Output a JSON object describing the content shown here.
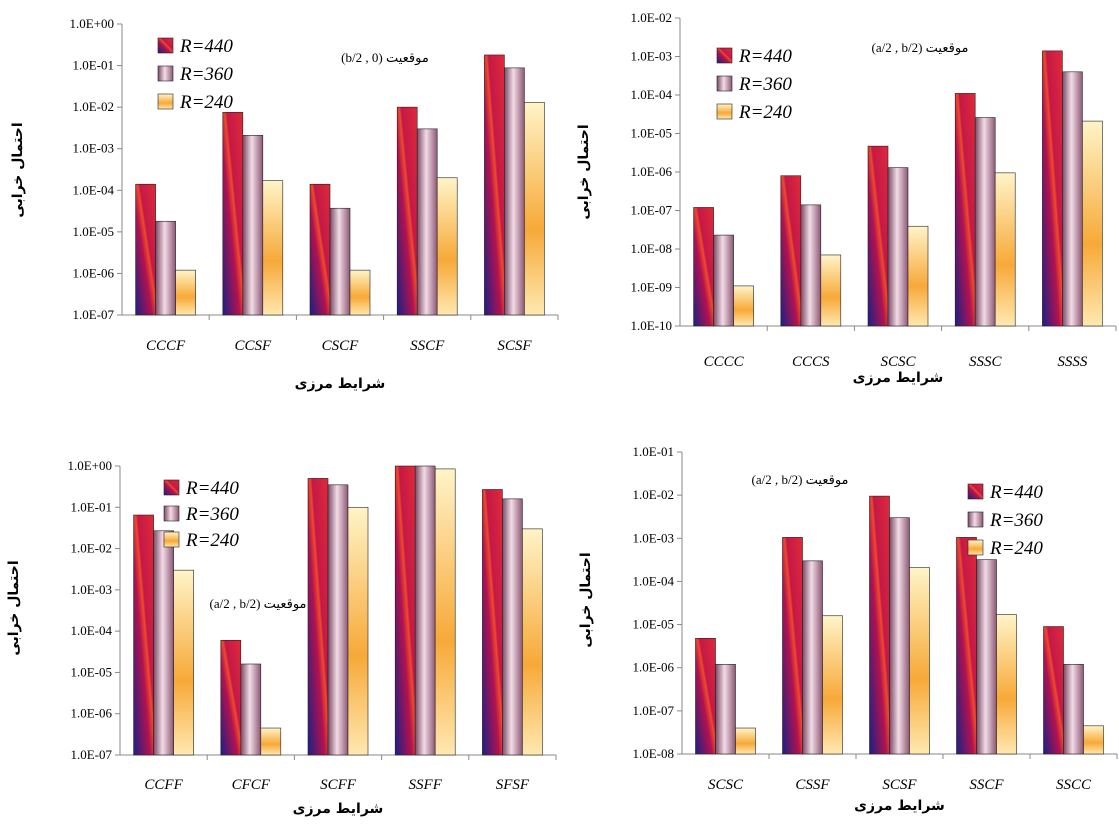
{
  "colors": {
    "r440": "#d81f3a",
    "r360": "#c58aa2",
    "r240": "#f4a94a",
    "axis": "#888888"
  },
  "chart_data": [
    {
      "type": "bar",
      "scale": "log",
      "ylabel": "احتمال خرابی",
      "xlabel": "شرایط مرزی",
      "ylim": [
        1e-07,
        1
      ],
      "yticks": [
        "1.0E-07",
        "1.0E-06",
        "1.0E-05",
        "1.0E-04",
        "1.0E-03",
        "1.0E-02",
        "1.0E-01",
        "1.0E+00"
      ],
      "annotation": "موقعیت (b/2 , 0)",
      "legend_position": "top-left",
      "categories": [
        "CCCF",
        "CCSF",
        "CSCF",
        "SSCF",
        "SCSF"
      ],
      "series": [
        {
          "name": "R=440",
          "values": [
            0.00014,
            0.0075,
            0.00014,
            0.01,
            0.18
          ]
        },
        {
          "name": "R=360",
          "values": [
            1.8e-05,
            0.0021,
            3.7e-05,
            0.003,
            0.088
          ]
        },
        {
          "name": "R=240",
          "values": [
            1.2e-06,
            0.00017,
            1.2e-06,
            0.0002,
            0.013
          ]
        }
      ]
    },
    {
      "type": "bar",
      "scale": "log",
      "ylabel": "احتمال خرابی",
      "xlabel": "شرایط مرزی",
      "ylim": [
        1e-10,
        0.01
      ],
      "yticks": [
        "1.0E-10",
        "1.0E-09",
        "1.0E-08",
        "1.0E-07",
        "1.0E-06",
        "1.0E-05",
        "1.0E-04",
        "1.0E-03",
        "1.0E-02"
      ],
      "annotation": "موقعیت (a/2 , b/2)",
      "legend_position": "top-left",
      "categories": [
        "CCCC",
        "CCCS",
        "SCSC",
        "SSSC",
        "SSSS"
      ],
      "series": [
        {
          "name": "R=440",
          "values": [
            1.2e-07,
            8e-07,
            4.7e-06,
            0.00011,
            0.0014
          ]
        },
        {
          "name": "R=360",
          "values": [
            2.3e-08,
            1.4e-07,
            1.3e-06,
            2.6e-05,
            0.0004
          ]
        },
        {
          "name": "R=240",
          "values": [
            1.1e-09,
            7e-09,
            3.9e-08,
            9.5e-07,
            2.1e-05
          ]
        }
      ]
    },
    {
      "type": "bar",
      "scale": "log",
      "ylabel": "احتمال خرابی",
      "xlabel": "شرایط مرزی",
      "ylim": [
        1e-07,
        1
      ],
      "yticks": [
        "1.0E-07",
        "1.0E-06",
        "1.0E-05",
        "1.0E-04",
        "1.0E-03",
        "1.0E-02",
        "1.0E-01",
        "1.0E+00"
      ],
      "annotation": "موقعیت (a/2 , b/2)",
      "legend_position": "top-left",
      "categories": [
        "CCFF",
        "CFCF",
        "SCFF",
        "SSFF",
        "SFSF"
      ],
      "series": [
        {
          "name": "R=440",
          "values": [
            0.065,
            6e-05,
            0.5,
            1.0,
            0.27
          ]
        },
        {
          "name": "R=360",
          "values": [
            0.027,
            1.6e-05,
            0.35,
            1.0,
            0.16
          ]
        },
        {
          "name": "R=240",
          "values": [
            0.003,
            4.5e-07,
            0.1,
            0.85,
            0.03
          ]
        }
      ]
    },
    {
      "type": "bar",
      "scale": "log",
      "ylabel": "احتمال خرابی",
      "xlabel": "شرایط مرزی",
      "ylim": [
        1e-08,
        0.1
      ],
      "yticks": [
        "1.0E-08",
        "1.0E-07",
        "1.0E-06",
        "1.0E-05",
        "1.0E-04",
        "1.0E-03",
        "1.0E-02",
        "1.0E-01"
      ],
      "annotation": "موقعیت (a/2 , b/2)",
      "legend_position": "top-right",
      "categories": [
        "SCSC",
        "CSSF",
        "SCSF",
        "SSCF",
        "SSCC"
      ],
      "series": [
        {
          "name": "R=440",
          "values": [
            4.8e-06,
            0.00105,
            0.0095,
            0.00105,
            9e-06
          ]
        },
        {
          "name": "R=360",
          "values": [
            1.2e-06,
            0.0003,
            0.003,
            0.00032,
            1.2e-06
          ]
        },
        {
          "name": "R=240",
          "values": [
            4e-08,
            1.6e-05,
            0.00021,
            1.7e-05,
            4.5e-08
          ]
        }
      ]
    }
  ]
}
